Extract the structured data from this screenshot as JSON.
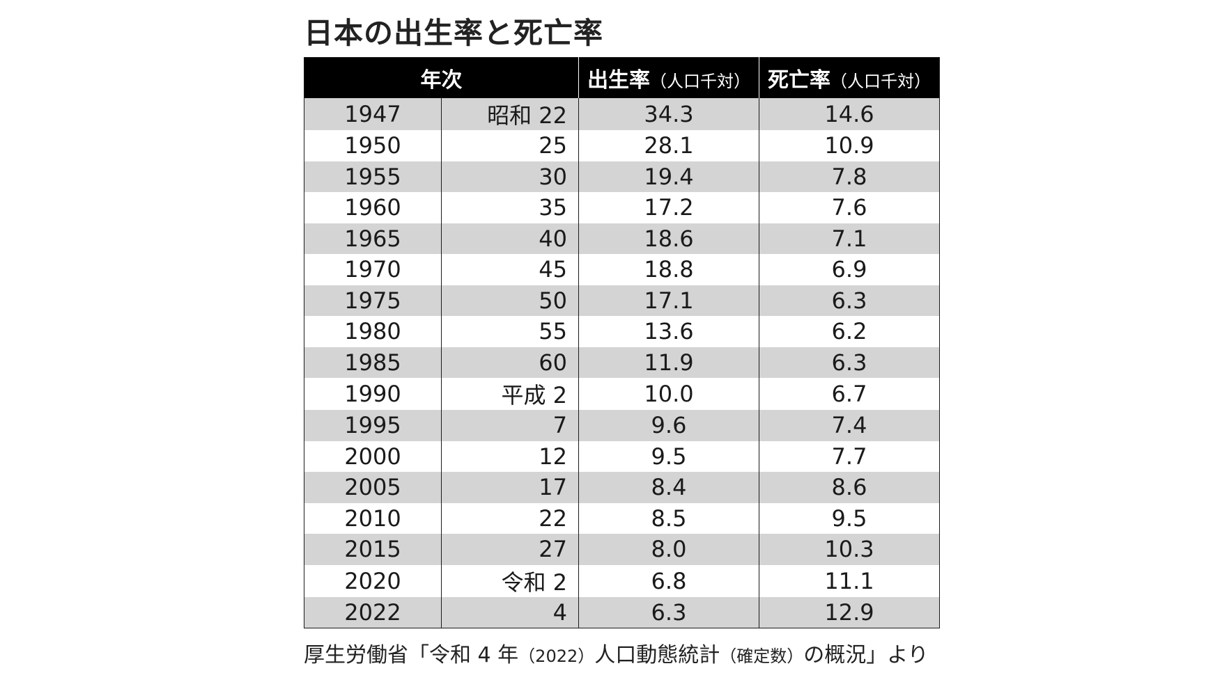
{
  "title": "日本の出生率と死亡率",
  "table": {
    "headers": {
      "year": "年次",
      "birth_rate": "出生率",
      "birth_unit": "（人口千対）",
      "death_rate": "死亡率",
      "death_unit": "（人口千対）"
    },
    "rows": [
      {
        "year": "1947",
        "era": "昭和 22",
        "birth": "34.3",
        "death": "14.6"
      },
      {
        "year": "1950",
        "era": "25",
        "birth": "28.1",
        "death": "10.9"
      },
      {
        "year": "1955",
        "era": "30",
        "birth": "19.4",
        "death": "7.8"
      },
      {
        "year": "1960",
        "era": "35",
        "birth": "17.2",
        "death": "7.6"
      },
      {
        "year": "1965",
        "era": "40",
        "birth": "18.6",
        "death": "7.1"
      },
      {
        "year": "1970",
        "era": "45",
        "birth": "18.8",
        "death": "6.9"
      },
      {
        "year": "1975",
        "era": "50",
        "birth": "17.1",
        "death": "6.3"
      },
      {
        "year": "1980",
        "era": "55",
        "birth": "13.6",
        "death": "6.2"
      },
      {
        "year": "1985",
        "era": "60",
        "birth": "11.9",
        "death": "6.3"
      },
      {
        "year": "1990",
        "era": "平成 2",
        "birth": "10.0",
        "death": "6.7"
      },
      {
        "year": "1995",
        "era": "7",
        "birth": "9.6",
        "death": "7.4"
      },
      {
        "year": "2000",
        "era": "12",
        "birth": "9.5",
        "death": "7.7"
      },
      {
        "year": "2005",
        "era": "17",
        "birth": "8.4",
        "death": "8.6"
      },
      {
        "year": "2010",
        "era": "22",
        "birth": "8.5",
        "death": "9.5"
      },
      {
        "year": "2015",
        "era": "27",
        "birth": "8.0",
        "death": "10.3"
      },
      {
        "year": "2020",
        "era": "令和 2",
        "birth": "6.8",
        "death": "11.1"
      },
      {
        "year": "2022",
        "era": "4",
        "birth": "6.3",
        "death": "12.9"
      }
    ]
  },
  "source": {
    "part1": "厚生労働省「令和 4 年",
    "part2": "（2022）",
    "part3": "人口動態統計",
    "part4": "（確定数）",
    "part5": "の概況」より"
  }
}
